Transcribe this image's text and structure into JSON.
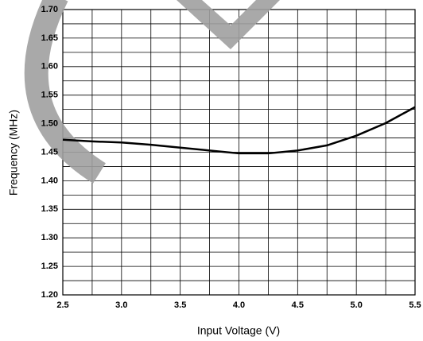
{
  "chart_data": {
    "type": "line",
    "x_label": "Input Voltage (V)",
    "y_label": "Frequency (MHz)",
    "series": [
      {
        "color": "#000000",
        "x": [
          2.5,
          2.75,
          3.0,
          3.25,
          3.5,
          3.75,
          4.0,
          4.25,
          4.5,
          4.75,
          5.0,
          5.25,
          5.5
        ],
        "values": [
          1.472,
          1.469,
          1.467,
          1.463,
          1.458,
          1.453,
          1.448,
          1.448,
          1.453,
          1.462,
          1.479,
          1.501,
          1.529
        ]
      }
    ],
    "xlim": [
      2.5,
      5.5
    ],
    "xticks": [
      2.5,
      {
        "value": 3,
        "label": "3.0"
      },
      3.5,
      {
        "value": 4,
        "label": "4.0"
      },
      4.5,
      {
        "value": 5,
        "label": "5.0"
      },
      5.5
    ],
    "x_minor_grid": [
      2.75,
      3.25,
      3.75,
      4.25,
      4.75,
      5.25
    ],
    "ylim": [
      1.2,
      1.7
    ],
    "yticks": [
      {
        "value": 1.2,
        "label": "1.20"
      },
      1.25,
      {
        "value": 1.3,
        "label": "1.30"
      },
      1.35,
      {
        "value": 1.4,
        "label": "1.40"
      },
      1.45,
      {
        "value": 1.5,
        "label": "1.50"
      },
      1.55,
      {
        "value": 1.6,
        "label": "1.60"
      },
      1.65,
      {
        "value": 1.7,
        "label": "1.70"
      }
    ],
    "y_minor_grid": [
      1.225,
      1.275,
      1.325,
      1.375,
      1.425,
      1.475,
      1.525,
      1.575,
      1.625,
      1.675
    ],
    "grid": true
  }
}
